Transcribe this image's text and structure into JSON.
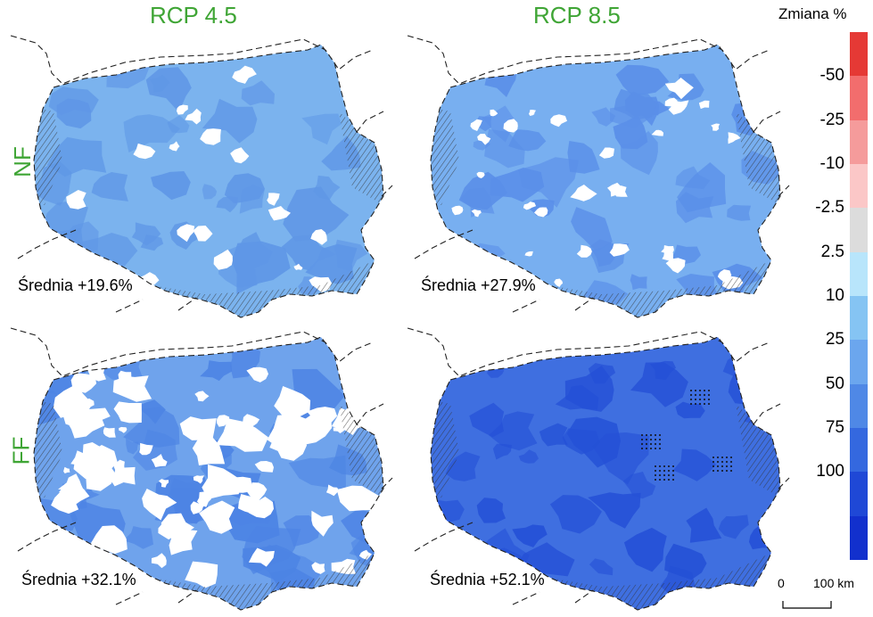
{
  "columns": [
    "RCP 4.5",
    "RCP 8.5"
  ],
  "rows": [
    "NF",
    "FF"
  ],
  "panels": [
    {
      "id": "nf-rcp45",
      "mean_label": "Średnia +19.6%",
      "base_color": "#7bb3ee",
      "patch_color": "#5f97e6",
      "hole_density": 0.25,
      "hatched": true,
      "dotted": false
    },
    {
      "id": "nf-rcp85",
      "mean_label": "Średnia +27.9%",
      "base_color": "#78aff0",
      "patch_color": "#5a8fe8",
      "hole_density": 0.45,
      "hatched": true,
      "dotted": false
    },
    {
      "id": "ff-rcp45",
      "mean_label": "Średnia +32.1%",
      "base_color": "#6fa3ec",
      "patch_color": "#4d84e4",
      "hole_density": 1.0,
      "hatched": true,
      "dotted": false
    },
    {
      "id": "ff-rcp85",
      "mean_label": "Średnia +52.1%",
      "base_color": "#3f6fe0",
      "patch_color": "#2450d6",
      "hole_density": 0.0,
      "hatched": true,
      "dotted": true
    }
  ],
  "legend": {
    "title": "Zmiana %",
    "colors": [
      "#e53935",
      "#f26d6d",
      "#f59b9b",
      "#fbc7c7",
      "#dcdcdc",
      "#b8e5fb",
      "#85c4f3",
      "#6ba6ee",
      "#4f88e6",
      "#3468df",
      "#1f48d6",
      "#1230cd"
    ],
    "tick_labels": [
      "-50",
      "-25",
      "-10",
      "-2.5",
      "2.5",
      "10",
      "25",
      "50",
      "75",
      "100"
    ]
  },
  "scalebar": {
    "start_label": "0",
    "end_label": "100 km"
  }
}
